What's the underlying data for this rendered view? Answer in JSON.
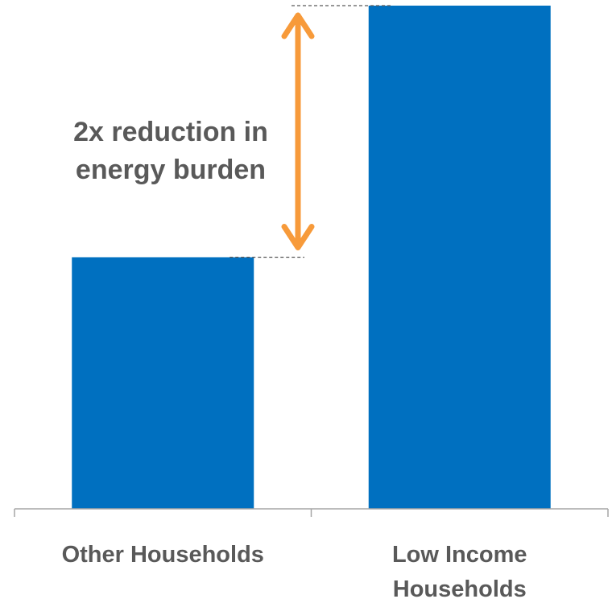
{
  "chart_data": {
    "type": "bar",
    "categories": [
      "Other Households",
      "Low Income Households"
    ],
    "category_label_lines": [
      [
        "Other Households"
      ],
      [
        "Low Income",
        "Households"
      ]
    ],
    "values": [
      1,
      2
    ],
    "ylim": [
      0,
      2
    ],
    "grid": false,
    "bar_color": "#0070C0",
    "annotation": {
      "lines": [
        "2x reduction in",
        "energy burden"
      ],
      "arrow_color": "#F79A3A",
      "connects": [
        0,
        1
      ]
    },
    "axis_color": "#A6A6A6",
    "label_color": "#595959"
  }
}
